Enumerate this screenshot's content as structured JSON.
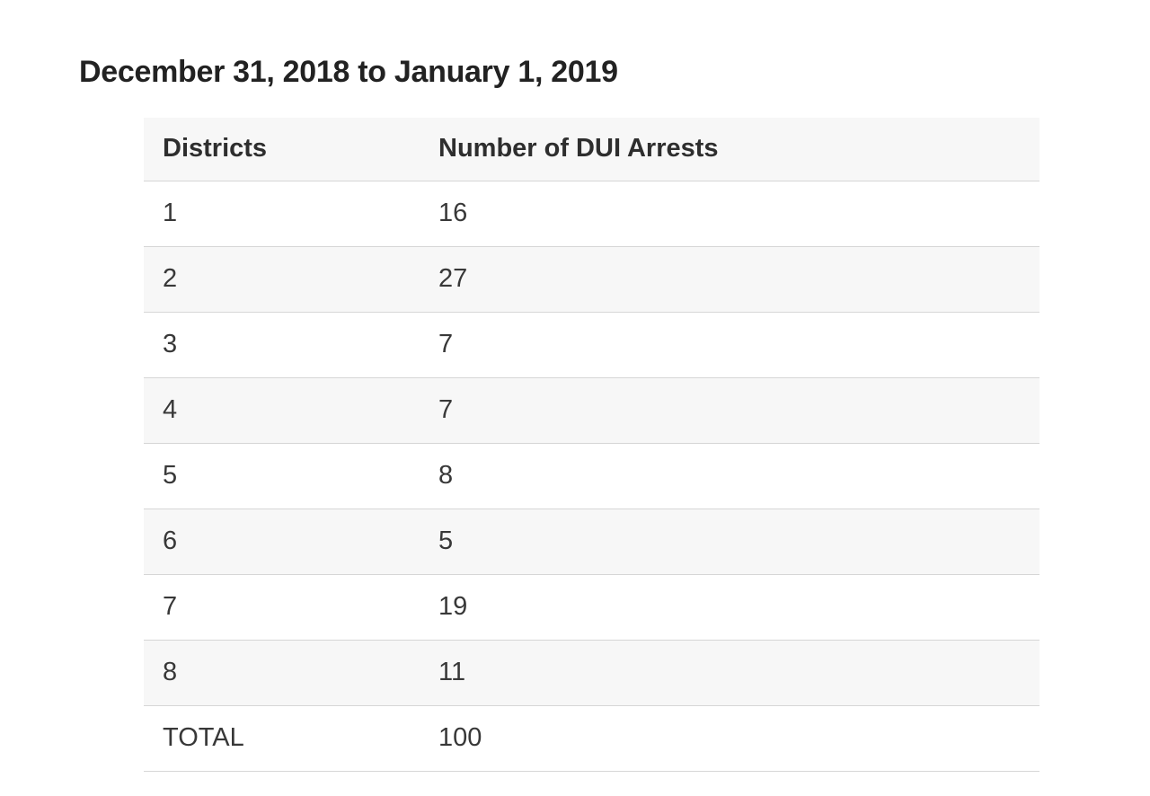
{
  "title": "December 31, 2018 to January 1, 2019",
  "table": {
    "headers": [
      "Districts",
      "Number of DUI Arrests"
    ],
    "rows": [
      [
        "1",
        "16"
      ],
      [
        "2",
        "27"
      ],
      [
        "3",
        "7"
      ],
      [
        "4",
        "7"
      ],
      [
        "5",
        "8"
      ],
      [
        "6",
        "5"
      ],
      [
        "7",
        "19"
      ],
      [
        "8",
        "11"
      ],
      [
        "TOTAL",
        "100"
      ]
    ]
  },
  "chart_data": {
    "type": "table",
    "title": "December 31, 2018 to January 1, 2019",
    "columns": [
      "Districts",
      "Number of DUI Arrests"
    ],
    "categories": [
      "1",
      "2",
      "3",
      "4",
      "5",
      "6",
      "7",
      "8"
    ],
    "values": [
      16,
      27,
      7,
      7,
      8,
      5,
      19,
      11
    ],
    "total_label": "TOTAL",
    "total_value": 100
  },
  "colors": {
    "header_bg": "#f7f7f7",
    "row_alt_bg": "#f7f7f7",
    "row_bg": "#ffffff",
    "border": "#d6d6d6",
    "title_text": "#222222",
    "cell_text": "#383838"
  }
}
